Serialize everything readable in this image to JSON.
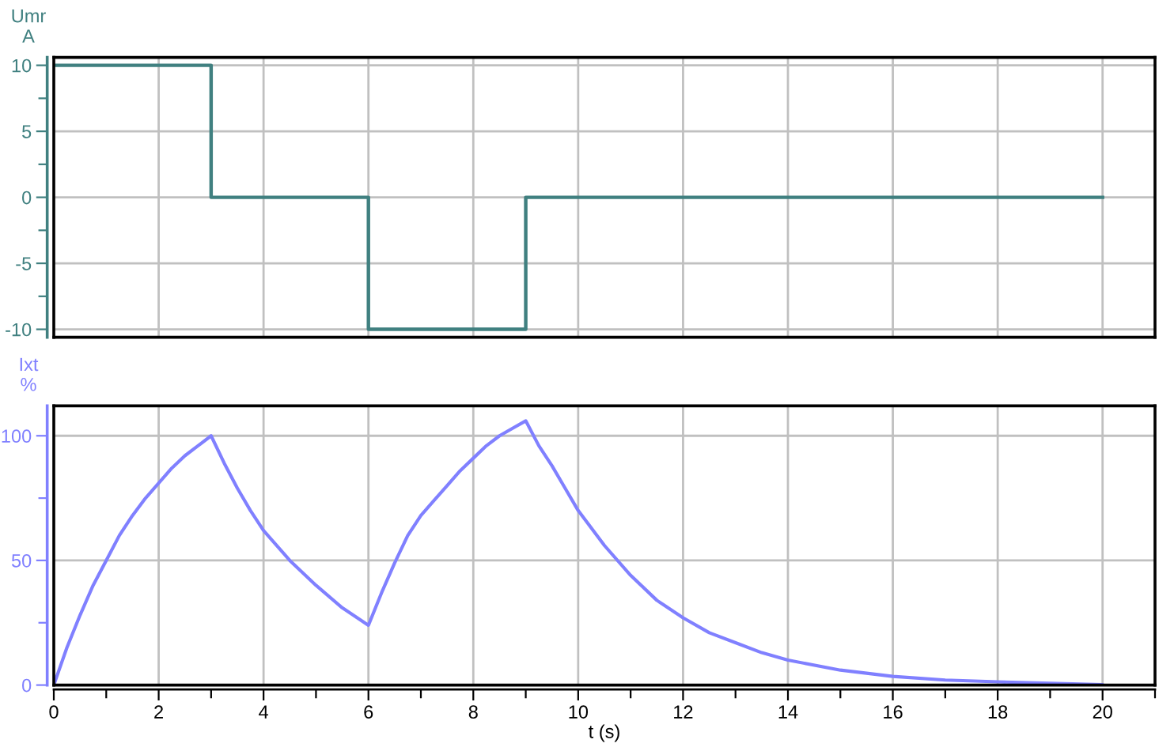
{
  "chart_data": [
    {
      "type": "step",
      "ylabel": "Umr\nA",
      "x": [
        0,
        3,
        6,
        9,
        20
      ],
      "series": [
        {
          "color": "#408080",
          "values": [
            10,
            0,
            -10,
            0,
            0
          ]
        }
      ],
      "xlim": [
        0,
        21
      ],
      "xticks": [
        0,
        2,
        4,
        6,
        8,
        10,
        12,
        14,
        16,
        18,
        20
      ],
      "ylim": [
        -10.6,
        10.6
      ],
      "yticks": [
        -10,
        -5,
        0,
        5,
        10
      ],
      "grid": true,
      "tick_labels": "y"
    },
    {
      "type": "line",
      "xlabel": "t (s)",
      "ylabel": "Ixt\n%",
      "x": [
        0,
        0.1,
        0.25,
        0.5,
        0.75,
        1,
        1.25,
        1.5,
        1.75,
        2,
        2.25,
        2.5,
        2.75,
        3,
        3.25,
        3.5,
        3.75,
        4,
        4.5,
        5,
        5.5,
        6,
        6.25,
        6.5,
        6.75,
        7,
        7.25,
        7.5,
        7.75,
        8,
        8.25,
        8.5,
        8.75,
        9,
        9.25,
        9.5,
        9.75,
        10,
        10.5,
        11,
        11.5,
        12,
        12.5,
        13,
        13.5,
        14,
        15,
        16,
        17,
        18,
        19,
        20
      ],
      "series": [
        {
          "color": "#8080ff",
          "values": [
            0,
            6,
            15,
            28,
            40,
            50,
            60,
            68,
            75,
            81,
            87,
            92,
            96,
            100,
            89,
            79,
            70,
            62,
            50,
            40,
            31,
            24,
            37,
            49,
            60,
            68,
            74,
            80,
            86,
            91,
            96,
            100,
            103,
            106,
            96,
            88,
            79,
            70,
            56,
            44,
            34,
            27,
            21,
            17,
            13,
            10,
            6,
            3.5,
            2,
            1.3,
            0.7,
            0.2
          ]
        }
      ],
      "xlim": [
        0,
        21
      ],
      "xticks": [
        0,
        2,
        4,
        6,
        8,
        10,
        12,
        14,
        16,
        18,
        20
      ],
      "ylim": [
        0,
        112
      ],
      "yticks": [
        0,
        50,
        100
      ],
      "grid": true
    }
  ]
}
